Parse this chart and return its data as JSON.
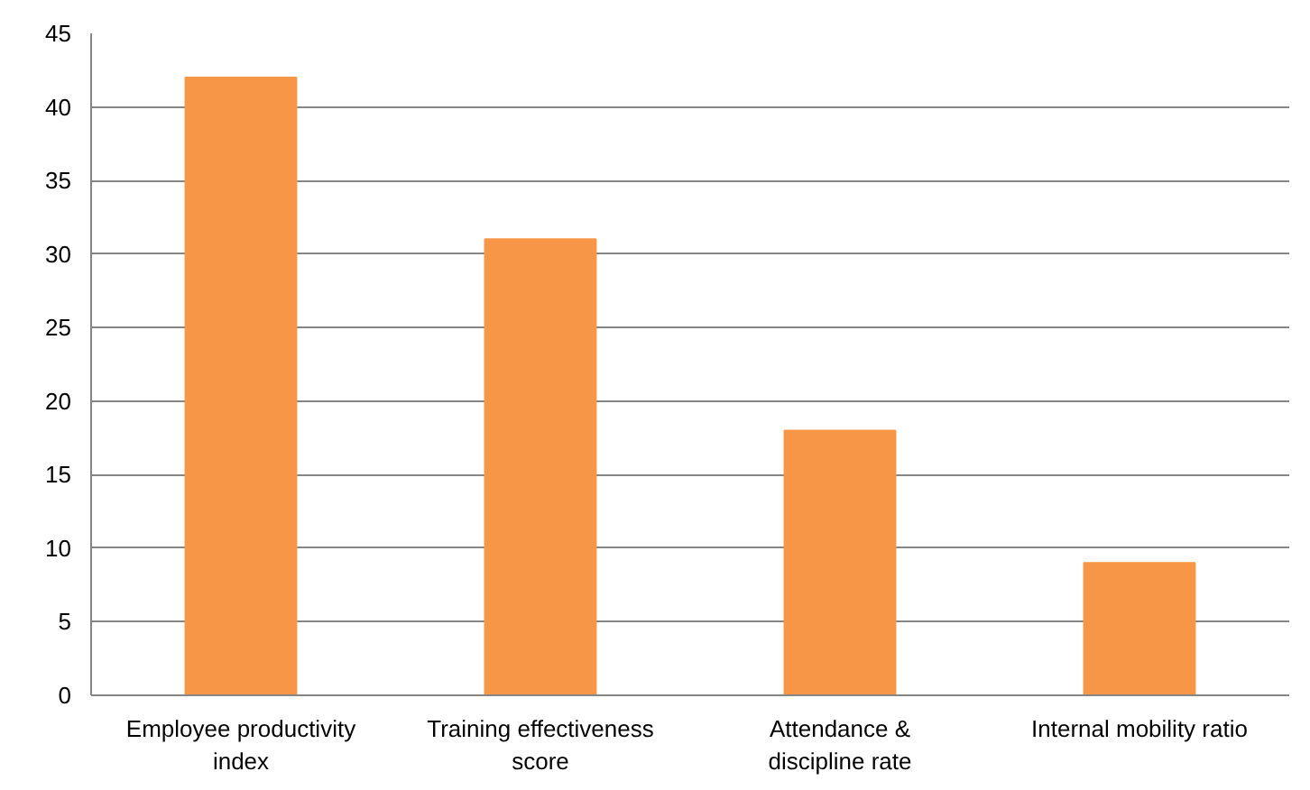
{
  "chart_data": {
    "type": "bar",
    "categories": [
      "Employee productivity index",
      "Training effectiveness score",
      "Attendance & discipline rate",
      "Internal mobility ratio"
    ],
    "values": [
      42,
      31,
      18,
      9
    ],
    "color": "#f79646",
    "ylim": [
      0,
      45
    ],
    "yticks": [
      0,
      5,
      10,
      15,
      20,
      25,
      30,
      35,
      40,
      45
    ],
    "grid": "y"
  }
}
